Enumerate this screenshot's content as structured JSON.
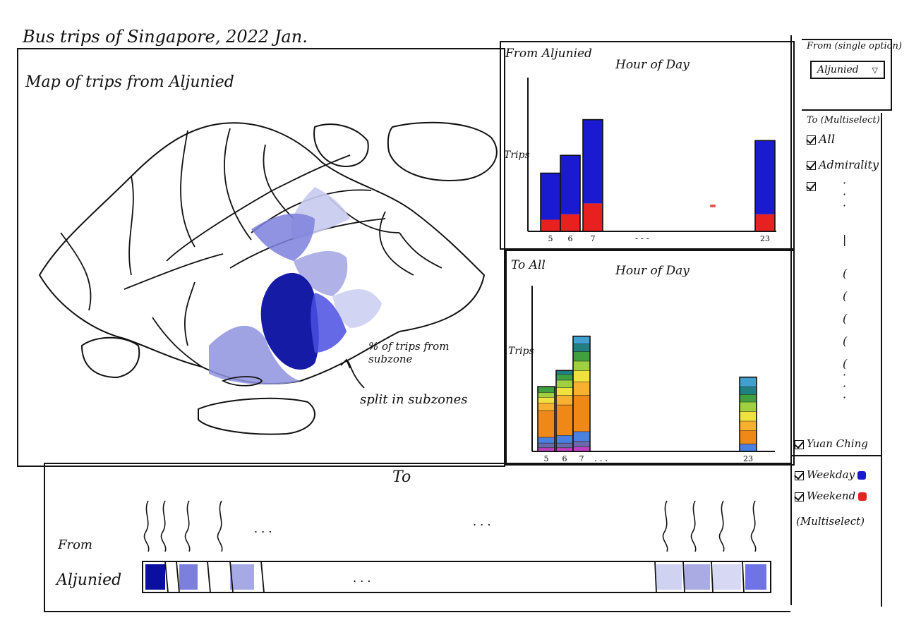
{
  "page": {
    "title": "Bus trips of Singapore, 2022 Jan."
  },
  "map": {
    "title": "Map of trips from Aljunied",
    "annotation_pct": "% of trips from subzone",
    "annotation_split": "split in subzones",
    "colors": {
      "deep": "#0a0fa0",
      "mid": "#4a4fe0",
      "light": "#8e92de",
      "pale": "#c8caf0"
    }
  },
  "chart_from": {
    "header": "From Aljunied",
    "title": "Hour of Day",
    "ylabel": "Trips",
    "ellipsis": ". . .",
    "xtick_gap": "- - -"
  },
  "chart_to": {
    "header": "To All",
    "title": "Hour of Day",
    "ylabel": "Trips",
    "ellipsis": ". . ."
  },
  "chart_data": [
    {
      "type": "bar",
      "title": "Hour of Day",
      "ylabel": "Trips",
      "categories": [
        "5",
        "6",
        "7",
        "23"
      ],
      "series": [
        {
          "name": "Weekday",
          "color": "#1a1ad0",
          "values": [
            60,
            76,
            108,
            95
          ]
        },
        {
          "name": "Weekend",
          "color": "#e82020",
          "values": [
            15,
            22,
            36,
            22
          ]
        }
      ]
    },
    {
      "type": "bar",
      "title": "Hour of Day",
      "ylabel": "Trips",
      "categories": [
        "5",
        "6",
        "7",
        "23"
      ],
      "stack_colors": [
        "#c040c0",
        "#6a6aa8",
        "#4a80e0",
        "#f08818",
        "#f8b030",
        "#f0e040",
        "#a0d040",
        "#40a040",
        "#208080",
        "#40a0d0"
      ],
      "values": [
        [
          4,
          5,
          6,
          28,
          8,
          6,
          5,
          6,
          0,
          0
        ],
        [
          4,
          5,
          8,
          32,
          10,
          8,
          8,
          6,
          4,
          0
        ],
        [
          5,
          6,
          10,
          38,
          14,
          12,
          10,
          10,
          8,
          8
        ],
        [
          0,
          0,
          8,
          14,
          10,
          10,
          10,
          8,
          8,
          10
        ]
      ]
    }
  ],
  "controls": {
    "from_label": "From (single option)",
    "from_value": "Aljunied",
    "to_label": "To (Multiselect)",
    "to_all": "All",
    "to_first": "Admirality",
    "to_last": "Yuan Ching",
    "weekday": "Weekday",
    "weekend": "Weekend",
    "daytype_note": "(Multiselect)",
    "weekday_color": "#1a1ad0",
    "weekend_color": "#e82020"
  },
  "matrix": {
    "to_label": "To",
    "row_prefix": "From",
    "row_name": "Aljunied",
    "ellipsis": ". . .",
    "cells": [
      "#0a0fa0",
      "#ffffff",
      "#7c80dc",
      "#ffffff",
      "#ffffff",
      "#a6a9e4",
      "#d0d2f2",
      "#a9abe2",
      "#d6d8f4",
      "#6f73e4"
    ]
  }
}
